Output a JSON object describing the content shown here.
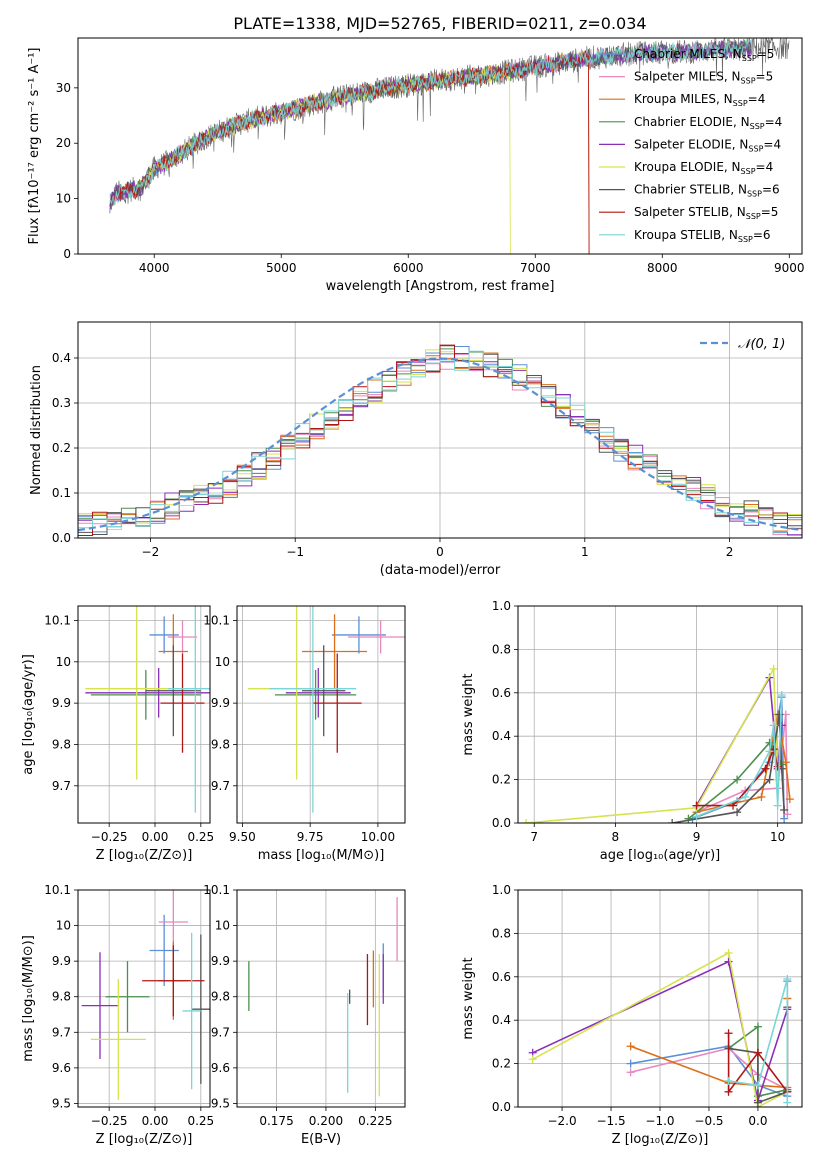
{
  "figure": {
    "title": "PLATE=1338, MJD=52765, FIBERID=0211, z=0.034"
  },
  "colors": {
    "palette": [
      "#5b8fd6",
      "#e887c0",
      "#dd6f1a",
      "#4c8f4c",
      "#8a2fb8",
      "#d5e34f",
      "#555555",
      "#b01515",
      "#7ad5d5"
    ]
  },
  "chart_data": [
    {
      "id": "spectrum",
      "type": "line",
      "xlabel": "wavelength [Angstrom, rest frame]",
      "ylabel": "Flux [fλ10⁻¹⁷ erg cm⁻² s⁻¹ A⁻¹]",
      "xlim": [
        3400,
        9100
      ],
      "ylim": [
        0,
        39
      ],
      "xticks": [
        4000,
        5000,
        6000,
        7000,
        8000,
        9000
      ],
      "yticks": [
        0,
        10,
        20,
        30
      ],
      "grid": false,
      "legend_position": "right",
      "continuum": {
        "x": [
          3650,
          3700,
          3800,
          3900,
          4000,
          4100,
          4200,
          4300,
          4400,
          4500,
          4600,
          4800,
          5000,
          5200,
          5400,
          5600,
          5800,
          6000,
          6200,
          6400,
          6600,
          6800,
          7000,
          7200,
          7400,
          7600,
          7800,
          8000,
          8200,
          8400,
          8600,
          8800
        ],
        "y": [
          9,
          11,
          11.5,
          12,
          15.5,
          16.5,
          18,
          19.5,
          21,
          22,
          23,
          24.5,
          25.5,
          26.8,
          28,
          29,
          29.8,
          30.5,
          31.2,
          31.8,
          32.3,
          33,
          33.8,
          34.5,
          35.3,
          35.8,
          36.2,
          36.5,
          36.5,
          36.8,
          37,
          37.3
        ]
      },
      "model_wavelength_end": 8700,
      "cutoffs": [
        {
          "series": "Kroupa ELODIE, N_SSP=4",
          "x_start": 3930,
          "x_drop": 6800
        },
        {
          "series": "Salpeter STELIB, N_SSP=5",
          "x_start": 3650,
          "x_drop": 7420
        },
        {
          "series": "Kroupa MILES, N_SSP=4",
          "x_start": 3650,
          "x_drop": 7420
        }
      ],
      "legend": [
        {
          "label": "Chabrier MILES, N",
          "sub": "SSP",
          "suffix": "=5",
          "color": "#5b8fd6"
        },
        {
          "label": "Salpeter MILES, N",
          "sub": "SSP",
          "suffix": "=5",
          "color": "#e887c0"
        },
        {
          "label": "Kroupa MILES, N",
          "sub": "SSP",
          "suffix": "=4",
          "color": "#dd6f1a"
        },
        {
          "label": "Chabrier ELODIE, N",
          "sub": "SSP",
          "suffix": "=4",
          "color": "#4c8f4c"
        },
        {
          "label": "Salpeter ELODIE, N",
          "sub": "SSP",
          "suffix": "=4",
          "color": "#8a2fb8"
        },
        {
          "label": "Kroupa ELODIE, N",
          "sub": "SSP",
          "suffix": "=4",
          "color": "#d5e34f"
        },
        {
          "label": "Chabrier STELIB, N",
          "sub": "SSP",
          "suffix": "=6",
          "color": "#555555"
        },
        {
          "label": "Salpeter STELIB, N",
          "sub": "SSP",
          "suffix": "=5",
          "color": "#b01515"
        },
        {
          "label": "Kroupa STELIB, N",
          "sub": "SSP",
          "suffix": "=6",
          "color": "#7ad5d5"
        }
      ]
    },
    {
      "id": "residuals",
      "type": "histogram",
      "xlabel": "(data-model)/error",
      "ylabel": "Normed distribution",
      "xlim": [
        -2.5,
        2.5
      ],
      "ylim": [
        0,
        0.48
      ],
      "xticks": [
        -2,
        -1,
        0,
        1,
        2
      ],
      "xticklabels": [
        "−2",
        "−1",
        "0",
        "1",
        "2"
      ],
      "yticks": [
        0,
        0.1,
        0.2,
        0.3,
        0.4
      ],
      "yticklabels": [
        "0.0",
        "0.1",
        "0.2",
        "0.3",
        "0.4"
      ],
      "grid": true,
      "bin_width": 0.1,
      "bins_start": -2.5,
      "legend": [
        {
          "label": "𝒩(0, 1)",
          "color": "#5b8fd6",
          "style": "dashed"
        }
      ],
      "base_density": [
        0.025,
        0.03,
        0.035,
        0.04,
        0.05,
        0.06,
        0.07,
        0.08,
        0.09,
        0.105,
        0.12,
        0.14,
        0.16,
        0.18,
        0.2,
        0.225,
        0.25,
        0.27,
        0.29,
        0.31,
        0.33,
        0.35,
        0.365,
        0.38,
        0.39,
        0.4,
        0.4,
        0.395,
        0.385,
        0.37,
        0.355,
        0.335,
        0.315,
        0.29,
        0.27,
        0.245,
        0.22,
        0.2,
        0.18,
        0.16,
        0.14,
        0.12,
        0.105,
        0.09,
        0.075,
        0.065,
        0.055,
        0.045,
        0.035,
        0.03
      ]
    },
    {
      "id": "age-vs-Z",
      "type": "errorbar",
      "xlabel": "Z [log₁₀(Z/Z⊙)]",
      "ylabel": "age  [log₁₀(age/yr)]",
      "xlim": [
        -0.42,
        0.3
      ],
      "ylim": [
        9.61,
        10.135
      ],
      "xticks": [
        -0.25,
        0,
        0.25
      ],
      "xticklabels": [
        "−0.25",
        "0.00",
        "0.25"
      ],
      "yticks": [
        9.7,
        9.8,
        9.9,
        10.0,
        10.1
      ],
      "grid": true,
      "points": [
        {
          "x": 0.05,
          "y": 10.065,
          "xerr": 0.08,
          "yerr": 0.045,
          "color": "#5b8fd6"
        },
        {
          "x": 0.15,
          "y": 10.06,
          "xerr": 0.08,
          "yerr": 0.04,
          "color": "#e887c0"
        },
        {
          "x": 0.1,
          "y": 10.025,
          "xerr": 0.08,
          "yerr": 0.09,
          "color": "#dd6f1a"
        },
        {
          "x": -0.05,
          "y": 9.92,
          "xerr": 0.3,
          "yerr": 0.06,
          "color": "#4c8f4c"
        },
        {
          "x": 0.02,
          "y": 9.925,
          "xerr": 0.4,
          "yerr": 0.06,
          "color": "#8a2fb8"
        },
        {
          "x": -0.1,
          "y": 9.935,
          "xerr": 0.28,
          "yerr": 0.22,
          "color": "#d5e34f"
        },
        {
          "x": 0.1,
          "y": 9.93,
          "xerr": 0.15,
          "yerr": 0.11,
          "color": "#555555"
        },
        {
          "x": 0.15,
          "y": 9.9,
          "xerr": 0.12,
          "yerr": 0.12,
          "color": "#b01515"
        },
        {
          "x": 0.22,
          "y": 9.935,
          "xerr": 0.15,
          "yerr": 0.3,
          "color": "#7ad5d5"
        }
      ]
    },
    {
      "id": "age-vs-mass",
      "type": "errorbar",
      "xlabel": "mass [log₁₀(M/M⊙)]",
      "ylabel": "",
      "xlim": [
        9.48,
        10.1
      ],
      "ylim": [
        9.61,
        10.135
      ],
      "xticks": [
        9.5,
        9.75,
        10.0
      ],
      "xticklabels": [
        "9.50",
        "9.75",
        "10.00"
      ],
      "yticks": [
        9.7,
        9.8,
        9.9,
        10.0,
        10.1
      ],
      "grid": true,
      "points": [
        {
          "x": 9.93,
          "y": 10.065,
          "xerr": 0.1,
          "yerr": 0.045,
          "color": "#5b8fd6"
        },
        {
          "x": 10.01,
          "y": 10.06,
          "xerr": 0.12,
          "yerr": 0.04,
          "color": "#e887c0"
        },
        {
          "x": 9.84,
          "y": 10.025,
          "xerr": 0.12,
          "yerr": 0.09,
          "color": "#dd6f1a"
        },
        {
          "x": 9.77,
          "y": 9.92,
          "xerr": 0.15,
          "yerr": 0.06,
          "color": "#4c8f4c"
        },
        {
          "x": 9.78,
          "y": 9.925,
          "xerr": 0.12,
          "yerr": 0.06,
          "color": "#8a2fb8"
        },
        {
          "x": 9.7,
          "y": 9.935,
          "xerr": 0.18,
          "yerr": 0.22,
          "color": "#d5e34f"
        },
        {
          "x": 9.8,
          "y": 9.93,
          "xerr": 0.08,
          "yerr": 0.11,
          "color": "#555555"
        },
        {
          "x": 9.85,
          "y": 9.9,
          "xerr": 0.09,
          "yerr": 0.12,
          "color": "#b01515"
        },
        {
          "x": 9.76,
          "y": 9.935,
          "xerr": 0.16,
          "yerr": 0.3,
          "color": "#7ad5d5"
        }
      ]
    },
    {
      "id": "weight-vs-age",
      "type": "line",
      "xlabel": "age  [log₁₀(age/yr)]",
      "ylabel": "mass weight",
      "xlim": [
        6.8,
        10.3
      ],
      "ylim": [
        0,
        1.0
      ],
      "xticks": [
        7,
        8,
        9,
        10
      ],
      "yticks": [
        0,
        0.2,
        0.4,
        0.6,
        0.8,
        1.0
      ],
      "yticklabels": [
        "0.0",
        "0.2",
        "0.4",
        "0.6",
        "0.8",
        "1.0"
      ],
      "grid": true,
      "series": [
        {
          "color": "#5b8fd6",
          "x": [
            8.95,
            9.5,
            9.9,
            10.05,
            10.08
          ],
          "y": [
            0.02,
            0.1,
            0.28,
            0.58,
            0.02
          ]
        },
        {
          "color": "#e887c0",
          "x": [
            9.0,
            9.6,
            10.0,
            10.1,
            10.12
          ],
          "y": [
            0.05,
            0.15,
            0.16,
            0.5,
            0.04
          ]
        },
        {
          "color": "#dd6f1a",
          "x": [
            9.0,
            9.8,
            10.0,
            10.1,
            10.15
          ],
          "y": [
            0.05,
            0.12,
            0.5,
            0.28,
            0.11
          ]
        },
        {
          "color": "#4c8f4c",
          "x": [
            8.9,
            9.5,
            9.9,
            10.05
          ],
          "y": [
            0.02,
            0.2,
            0.37,
            0.27
          ]
        },
        {
          "color": "#8a2fb8",
          "x": [
            9.0,
            9.9,
            10.0,
            10.05
          ],
          "y": [
            0.08,
            0.67,
            0.25,
            0.45
          ]
        },
        {
          "color": "#d5e34f",
          "x": [
            6.9,
            9.0,
            9.95,
            10.0
          ],
          "y": [
            0.0,
            0.07,
            0.71,
            0.2
          ]
        },
        {
          "color": "#555555",
          "x": [
            8.7,
            9.5,
            9.9,
            10.02,
            10.05,
            10.08
          ],
          "y": [
            0.0,
            0.05,
            0.2,
            0.5,
            0.25,
            0.06
          ]
        },
        {
          "color": "#b01515",
          "x": [
            9.0,
            9.45,
            9.85,
            9.95,
            10.0
          ],
          "y": [
            0.08,
            0.08,
            0.25,
            0.34,
            0.26
          ]
        },
        {
          "color": "#7ad5d5",
          "x": [
            9.0,
            9.6,
            9.9,
            9.95,
            10.0,
            10.05
          ],
          "y": [
            0.03,
            0.12,
            0.33,
            0.45,
            0.08,
            0.59
          ]
        }
      ]
    },
    {
      "id": "mass-vs-Z",
      "type": "errorbar",
      "xlabel": "Z [log₁₀(Z/Z⊙)]",
      "ylabel": "mass [log₁₀(M/M⊙)]",
      "xlim": [
        -0.42,
        0.3
      ],
      "ylim": [
        9.49,
        10.1
      ],
      "xticks": [
        -0.25,
        0,
        0.25
      ],
      "xticklabels": [
        "−0.25",
        "0.00",
        "0.25"
      ],
      "yticks": [
        9.5,
        9.6,
        9.7,
        9.8,
        9.9,
        10.0,
        10.1
      ],
      "grid": true,
      "points": [
        {
          "x": 0.05,
          "y": 9.93,
          "xerr": 0.08,
          "yerr": 0.1,
          "color": "#5b8fd6"
        },
        {
          "x": 0.1,
          "y": 10.01,
          "xerr": 0.08,
          "yerr": 0.1,
          "color": "#e887c0"
        },
        {
          "x": 0.1,
          "y": 9.845,
          "xerr": 0.08,
          "yerr": 0.11,
          "color": "#dd6f1a"
        },
        {
          "x": -0.15,
          "y": 9.8,
          "xerr": 0.12,
          "yerr": 0.1,
          "color": "#4c8f4c"
        },
        {
          "x": -0.3,
          "y": 9.775,
          "xerr": 0.1,
          "yerr": 0.15,
          "color": "#8a2fb8"
        },
        {
          "x": -0.2,
          "y": 9.68,
          "xerr": 0.15,
          "yerr": 0.17,
          "color": "#d5e34f"
        },
        {
          "x": 0.25,
          "y": 9.765,
          "xerr": 0.05,
          "yerr": 0.21,
          "color": "#555555"
        },
        {
          "x": 0.1,
          "y": 9.845,
          "xerr": 0.17,
          "yerr": 0.1,
          "color": "#b01515"
        },
        {
          "x": 0.2,
          "y": 9.76,
          "xerr": 0.05,
          "yerr": 0.22,
          "color": "#7ad5d5"
        }
      ]
    },
    {
      "id": "mass-vs-EBV",
      "type": "errorbar",
      "xlabel": "E(B-V)",
      "ylabel": "",
      "xlim": [
        0.155,
        0.24
      ],
      "ylim": [
        9.49,
        10.1
      ],
      "xticks": [
        0.175,
        0.2,
        0.225
      ],
      "xticklabels": [
        "0.175",
        "0.200",
        "0.225"
      ],
      "yticks": [
        9.5,
        9.6,
        9.7,
        9.8,
        9.9,
        10.0,
        10.1
      ],
      "grid": true,
      "points": [
        {
          "x": 0.229,
          "y": 9.88,
          "xerr": 0,
          "yerr": 0.07,
          "color": "#5b8fd6"
        },
        {
          "x": 0.236,
          "y": 9.99,
          "xerr": 0,
          "yerr": 0.09,
          "color": "#e887c0"
        },
        {
          "x": 0.224,
          "y": 9.85,
          "xerr": 0,
          "yerr": 0.08,
          "color": "#dd6f1a"
        },
        {
          "x": 0.161,
          "y": 9.83,
          "xerr": 0,
          "yerr": 0.07,
          "color": "#4c8f4c"
        },
        {
          "x": 0.229,
          "y": 9.85,
          "xerr": 0,
          "yerr": 0.07,
          "color": "#8a2fb8"
        },
        {
          "x": 0.227,
          "y": 9.72,
          "xerr": 0,
          "yerr": 0.2,
          "color": "#d5e34f"
        },
        {
          "x": 0.212,
          "y": 9.8,
          "xerr": 0,
          "yerr": 0.02,
          "color": "#555555"
        },
        {
          "x": 0.221,
          "y": 9.82,
          "xerr": 0,
          "yerr": 0.1,
          "color": "#b01515"
        },
        {
          "x": 0.211,
          "y": 9.67,
          "xerr": 0,
          "yerr": 0.14,
          "color": "#7ad5d5"
        }
      ]
    },
    {
      "id": "weight-vs-Z",
      "type": "line",
      "xlabel": "Z [log₁₀(Z/Z⊙)]",
      "ylabel": "mass weight",
      "xlim": [
        -2.45,
        0.45
      ],
      "ylim": [
        0,
        1.0
      ],
      "xticks": [
        -2.0,
        -1.5,
        -1.0,
        -0.5,
        0.0
      ],
      "xticklabels": [
        "−2.0",
        "−1.5",
        "−1.0",
        "−0.5",
        "0.0"
      ],
      "yticks": [
        0,
        0.2,
        0.4,
        0.6,
        0.8,
        1.0
      ],
      "yticklabels": [
        "0.0",
        "0.2",
        "0.4",
        "0.6",
        "0.8",
        "1.0"
      ],
      "grid": true,
      "series": [
        {
          "color": "#5b8fd6",
          "x": [
            -1.3,
            -0.3,
            0.0,
            0.3,
            0.3
          ],
          "y": [
            0.2,
            0.28,
            0.1,
            0.05,
            0.58
          ]
        },
        {
          "color": "#e887c0",
          "x": [
            -1.3,
            -0.3,
            0.0,
            0.3,
            0.3
          ],
          "y": [
            0.16,
            0.27,
            0.15,
            0.08,
            0.5
          ]
        },
        {
          "color": "#dd6f1a",
          "x": [
            -1.3,
            -0.3,
            0.3,
            0.3
          ],
          "y": [
            0.28,
            0.11,
            0.09,
            0.5
          ]
        },
        {
          "color": "#4c8f4c",
          "x": [
            -0.3,
            0.0,
            0.0,
            0.3
          ],
          "y": [
            0.27,
            0.37,
            0.05,
            0.08
          ]
        },
        {
          "color": "#8a2fb8",
          "x": [
            -2.3,
            -0.3,
            0.0,
            0.3
          ],
          "y": [
            0.25,
            0.67,
            0.03,
            0.45
          ]
        },
        {
          "color": "#d5e34f",
          "x": [
            -2.3,
            -0.3,
            0.0,
            0.3
          ],
          "y": [
            0.22,
            0.71,
            0.0,
            0.07
          ]
        },
        {
          "color": "#555555",
          "x": [
            -0.3,
            0.0,
            0.0,
            0.3,
            0.3
          ],
          "y": [
            0.27,
            0.25,
            0.02,
            0.07,
            0.46
          ]
        },
        {
          "color": "#b01515",
          "x": [
            -0.3,
            -0.3,
            0.0,
            0.3
          ],
          "y": [
            0.34,
            0.07,
            0.25,
            0.07
          ]
        },
        {
          "color": "#7ad5d5",
          "x": [
            -0.3,
            0.0,
            0.3,
            0.3
          ],
          "y": [
            0.12,
            0.1,
            0.59,
            0.02
          ]
        }
      ]
    }
  ]
}
